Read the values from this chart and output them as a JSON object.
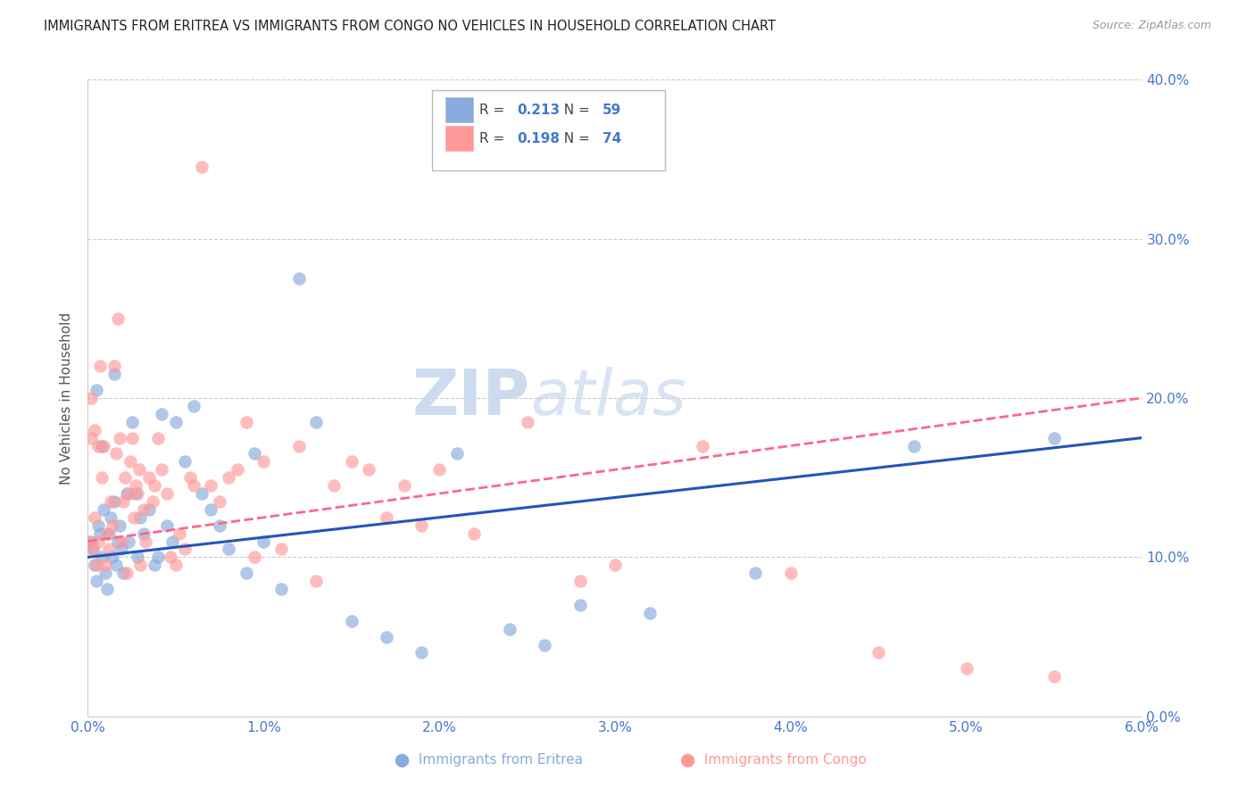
{
  "title": "IMMIGRANTS FROM ERITREA VS IMMIGRANTS FROM CONGO NO VEHICLES IN HOUSEHOLD CORRELATION CHART",
  "source": "Source: ZipAtlas.com",
  "xlabel_eritrea": "Immigrants from Eritrea",
  "xlabel_congo": "Immigrants from Congo",
  "ylabel": "No Vehicles in Household",
  "xlim": [
    0.0,
    6.0
  ],
  "ylim": [
    0.0,
    40.0
  ],
  "xticks": [
    0.0,
    1.0,
    2.0,
    3.0,
    4.0,
    5.0,
    6.0
  ],
  "yticks": [
    0.0,
    10.0,
    20.0,
    30.0,
    40.0
  ],
  "xtick_labels": [
    "0.0%",
    "1.0%",
    "2.0%",
    "3.0%",
    "4.0%",
    "5.0%",
    "6.0%"
  ],
  "ytick_labels": [
    "0.0%",
    "10.0%",
    "20.0%",
    "30.0%",
    "40.0%"
  ],
  "eritrea_color": "#88AADD",
  "congo_color": "#FF9999",
  "eritrea_line_color": "#2255BB",
  "congo_line_color": "#FF6688",
  "eritrea_R": 0.213,
  "eritrea_N": 59,
  "congo_R": 0.198,
  "congo_N": 74,
  "watermark_zip": "ZIP",
  "watermark_atlas": "atlas",
  "axis_color": "#4477CC",
  "eritrea_x": [
    0.02,
    0.03,
    0.04,
    0.05,
    0.06,
    0.07,
    0.08,
    0.09,
    0.1,
    0.11,
    0.12,
    0.13,
    0.14,
    0.15,
    0.16,
    0.17,
    0.18,
    0.19,
    0.2,
    0.22,
    0.23,
    0.25,
    0.27,
    0.28,
    0.3,
    0.32,
    0.35,
    0.38,
    0.4,
    0.42,
    0.45,
    0.48,
    0.5,
    0.55,
    0.6,
    0.65,
    0.7,
    0.75,
    0.8,
    0.9,
    0.95,
    1.0,
    1.1,
    1.2,
    1.3,
    1.5,
    1.7,
    1.9,
    2.1,
    2.4,
    2.6,
    2.8,
    3.2,
    3.8,
    4.7,
    5.5,
    0.05,
    0.08,
    0.15
  ],
  "eritrea_y": [
    11.0,
    10.5,
    9.5,
    8.5,
    12.0,
    11.5,
    10.0,
    13.0,
    9.0,
    8.0,
    11.5,
    12.5,
    10.0,
    13.5,
    9.5,
    11.0,
    12.0,
    10.5,
    9.0,
    14.0,
    11.0,
    18.5,
    14.0,
    10.0,
    12.5,
    11.5,
    13.0,
    9.5,
    10.0,
    19.0,
    12.0,
    11.0,
    18.5,
    16.0,
    19.5,
    14.0,
    13.0,
    12.0,
    10.5,
    9.0,
    16.5,
    11.0,
    8.0,
    27.5,
    18.5,
    6.0,
    5.0,
    4.0,
    16.5,
    5.5,
    4.5,
    7.0,
    6.5,
    9.0,
    17.0,
    17.5,
    20.5,
    17.0,
    21.5
  ],
  "congo_x": [
    0.01,
    0.02,
    0.03,
    0.04,
    0.05,
    0.06,
    0.07,
    0.08,
    0.09,
    0.1,
    0.11,
    0.12,
    0.13,
    0.14,
    0.15,
    0.16,
    0.17,
    0.18,
    0.19,
    0.2,
    0.21,
    0.22,
    0.23,
    0.24,
    0.25,
    0.26,
    0.27,
    0.28,
    0.29,
    0.3,
    0.32,
    0.33,
    0.35,
    0.37,
    0.38,
    0.4,
    0.42,
    0.45,
    0.47,
    0.5,
    0.52,
    0.55,
    0.58,
    0.6,
    0.65,
    0.7,
    0.75,
    0.8,
    0.85,
    0.9,
    0.95,
    1.0,
    1.1,
    1.2,
    1.3,
    1.4,
    1.5,
    1.6,
    1.7,
    1.8,
    1.9,
    2.0,
    2.2,
    2.5,
    2.8,
    3.0,
    3.5,
    4.0,
    4.5,
    5.0,
    5.5,
    0.02,
    0.04,
    0.06
  ],
  "congo_y": [
    11.0,
    17.5,
    10.5,
    12.5,
    9.5,
    11.0,
    22.0,
    15.0,
    17.0,
    9.5,
    11.5,
    10.5,
    13.5,
    12.0,
    22.0,
    16.5,
    25.0,
    17.5,
    11.0,
    13.5,
    15.0,
    9.0,
    14.0,
    16.0,
    17.5,
    12.5,
    14.5,
    14.0,
    15.5,
    9.5,
    13.0,
    11.0,
    15.0,
    13.5,
    14.5,
    17.5,
    15.5,
    14.0,
    10.0,
    9.5,
    11.5,
    10.5,
    15.0,
    14.5,
    34.5,
    14.5,
    13.5,
    15.0,
    15.5,
    18.5,
    10.0,
    16.0,
    10.5,
    17.0,
    8.5,
    14.5,
    16.0,
    15.5,
    12.5,
    14.5,
    12.0,
    15.5,
    11.5,
    18.5,
    8.5,
    9.5,
    17.0,
    9.0,
    4.0,
    3.0,
    2.5,
    20.0,
    18.0,
    17.0
  ]
}
